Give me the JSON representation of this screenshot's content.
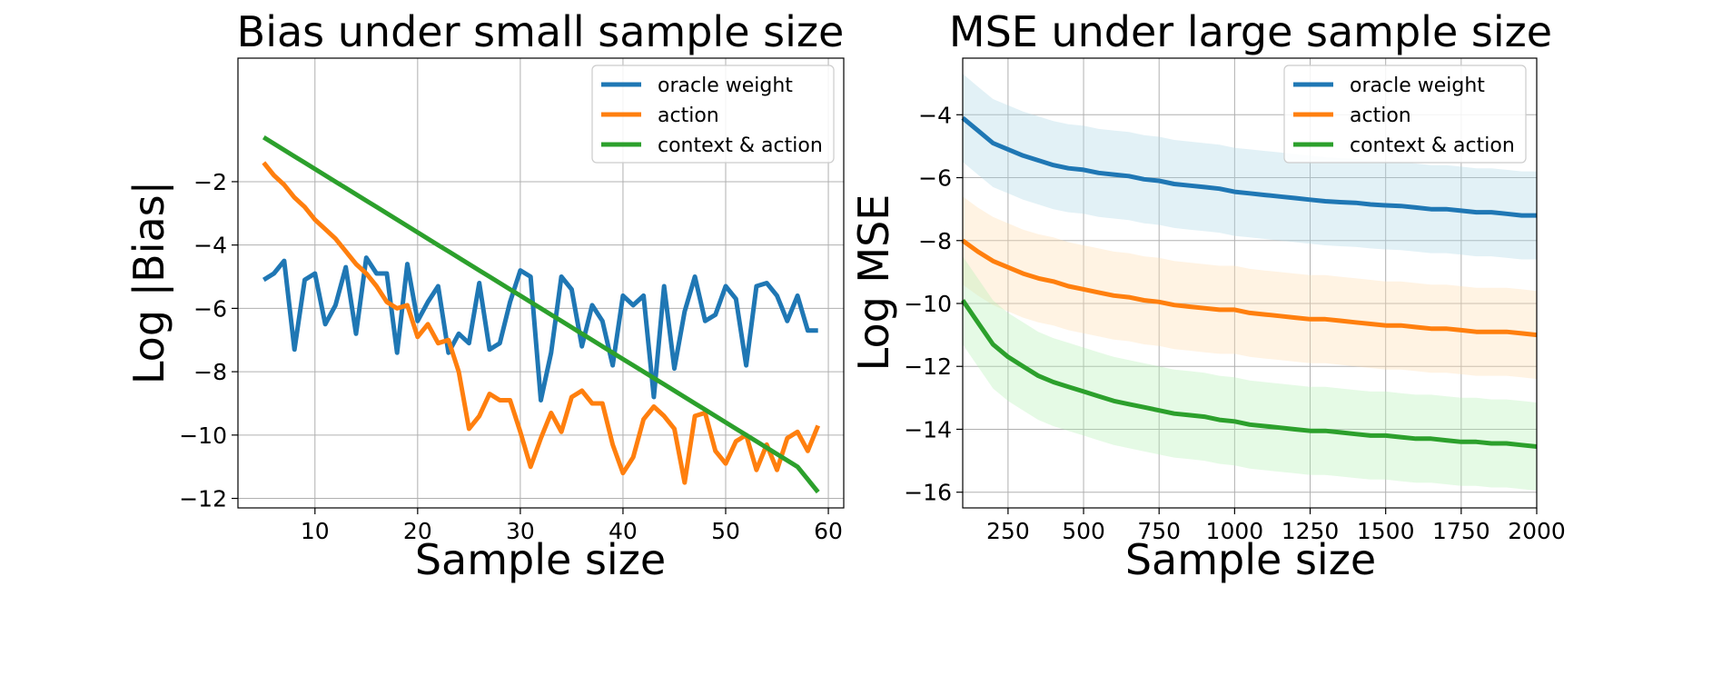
{
  "chart_data": [
    {
      "type": "line",
      "title": "Bias under small sample size",
      "xlabel": "Sample size",
      "ylabel": "Log |Bias|",
      "xlim": [
        2.5,
        61.5
      ],
      "ylim": [
        -12.3,
        1.9
      ],
      "xticks": [
        10,
        20,
        30,
        40,
        50,
        60
      ],
      "yticks": [
        -12,
        -10,
        -8,
        -6,
        -4,
        -2
      ],
      "ytick_labels": [
        "−12",
        "−10",
        "−8",
        "−6",
        "−4",
        "−2"
      ],
      "grid": true,
      "legend_position": "top-right",
      "x": [
        5,
        6,
        7,
        8,
        9,
        10,
        11,
        12,
        13,
        14,
        15,
        16,
        17,
        18,
        19,
        20,
        21,
        22,
        23,
        24,
        25,
        26,
        27,
        28,
        29,
        30,
        31,
        32,
        33,
        34,
        35,
        36,
        37,
        38,
        39,
        40,
        41,
        42,
        43,
        44,
        45,
        46,
        47,
        48,
        49,
        50,
        51,
        52,
        53,
        54,
        55,
        56,
        57,
        58,
        59
      ],
      "series": [
        {
          "name": "oracle weight",
          "color": "#1f77b4",
          "values": [
            -5.1,
            -4.9,
            -4.5,
            -7.3,
            -5.1,
            -4.9,
            -6.5,
            -5.9,
            -4.7,
            -6.8,
            -4.4,
            -4.9,
            -4.9,
            -7.4,
            -4.6,
            -6.4,
            -5.8,
            -5.3,
            -7.4,
            -6.8,
            -7.1,
            -5.2,
            -7.3,
            -7.1,
            -5.8,
            -4.8,
            -5.0,
            -8.9,
            -7.4,
            -5.0,
            -5.4,
            -7.2,
            -5.9,
            -6.4,
            -7.8,
            -5.6,
            -5.9,
            -5.6,
            -8.8,
            -5.3,
            -7.9,
            -6.1,
            -5.0,
            -6.4,
            -6.2,
            -5.3,
            -5.7,
            -7.8,
            -5.3,
            -5.2,
            -5.6,
            -6.4,
            -5.6,
            -6.7,
            -6.7
          ]
        },
        {
          "name": "action",
          "color": "#ff7f0e",
          "values": [
            -1.4,
            -1.8,
            -2.1,
            -2.5,
            -2.8,
            -3.2,
            -3.5,
            -3.8,
            -4.2,
            -4.6,
            -4.9,
            -5.3,
            -5.8,
            -6.0,
            -5.9,
            -6.9,
            -6.5,
            -7.1,
            -7.0,
            -8.0,
            -9.8,
            -9.4,
            -8.7,
            -8.9,
            -8.9,
            -9.9,
            -11.0,
            -10.1,
            -9.3,
            -9.9,
            -8.8,
            -8.6,
            -9.0,
            -9.0,
            -10.3,
            -11.2,
            -10.7,
            -9.5,
            -9.1,
            -9.4,
            -9.8,
            -11.5,
            -9.4,
            -9.3,
            -10.5,
            -10.9,
            -10.2,
            -10.0,
            -11.1,
            -10.3,
            -11.1,
            -10.1,
            -9.9,
            -10.5,
            -9.7
          ]
        },
        {
          "name": "context & action",
          "color": "#2ca02c",
          "values": [
            -0.6,
            -0.8,
            -1.0,
            -1.2,
            -1.4,
            -1.6,
            -1.8,
            -2.0,
            -2.2,
            -2.4,
            -2.6,
            -2.8,
            -3.0,
            -3.2,
            -3.4,
            -3.6,
            -3.8,
            -4.0,
            -4.2,
            -4.4,
            -4.6,
            -4.8,
            -5.0,
            -5.2,
            -5.4,
            -5.6,
            -5.8,
            -6.0,
            -6.2,
            -6.4,
            -6.6,
            -6.8,
            -7.0,
            -7.2,
            -7.4,
            -7.6,
            -7.8,
            -8.0,
            -8.2,
            -8.4,
            -8.6,
            -8.8,
            -9.0,
            -9.2,
            -9.4,
            -9.6,
            -9.8,
            -10.0,
            -10.2,
            -10.4,
            -10.6,
            -10.8,
            -11.0,
            -11.4,
            -11.8
          ]
        }
      ]
    },
    {
      "type": "line",
      "title": "MSE under large sample size",
      "xlabel": "Sample size",
      "ylabel": "Log MSE",
      "xlim": [
        100,
        2000
      ],
      "ylim": [
        -16.5,
        -2.2
      ],
      "xticks": [
        250,
        500,
        750,
        1000,
        1250,
        1500,
        1750,
        2000
      ],
      "yticks": [
        -16,
        -14,
        -12,
        -10,
        -8,
        -6,
        -4
      ],
      "ytick_labels": [
        "−16",
        "−14",
        "−12",
        "−10",
        "−8",
        "−6",
        "−4"
      ],
      "grid": true,
      "legend_position": "top-right",
      "x": [
        100,
        150,
        200,
        250,
        300,
        350,
        400,
        450,
        500,
        550,
        600,
        650,
        700,
        750,
        800,
        850,
        900,
        950,
        1000,
        1050,
        1100,
        1150,
        1200,
        1250,
        1300,
        1350,
        1400,
        1450,
        1500,
        1550,
        1600,
        1650,
        1700,
        1750,
        1800,
        1850,
        1900,
        1950,
        2000
      ],
      "series": [
        {
          "name": "oracle weight",
          "color": "#1f77b4",
          "band_color": "#add8e6",
          "values": [
            -4.1,
            -4.5,
            -4.9,
            -5.1,
            -5.3,
            -5.45,
            -5.6,
            -5.7,
            -5.75,
            -5.85,
            -5.9,
            -5.95,
            -6.05,
            -6.1,
            -6.2,
            -6.25,
            -6.3,
            -6.35,
            -6.45,
            -6.5,
            -6.55,
            -6.6,
            -6.65,
            -6.7,
            -6.75,
            -6.78,
            -6.8,
            -6.85,
            -6.88,
            -6.9,
            -6.95,
            -7.0,
            -7.0,
            -7.05,
            -7.1,
            -7.1,
            -7.15,
            -7.2,
            -7.2
          ],
          "lower": [
            -5.5,
            -5.9,
            -6.3,
            -6.5,
            -6.7,
            -6.85,
            -7.0,
            -7.1,
            -7.15,
            -7.25,
            -7.3,
            -7.35,
            -7.45,
            -7.5,
            -7.6,
            -7.65,
            -7.7,
            -7.75,
            -7.85,
            -7.9,
            -7.95,
            -8.0,
            -8.05,
            -8.1,
            -8.15,
            -8.18,
            -8.2,
            -8.25,
            -8.28,
            -8.3,
            -8.35,
            -8.4,
            -8.4,
            -8.45,
            -8.5,
            -8.5,
            -8.55,
            -8.6,
            -8.6
          ],
          "upper": [
            -2.7,
            -3.1,
            -3.5,
            -3.7,
            -3.9,
            -4.05,
            -4.2,
            -4.3,
            -4.35,
            -4.45,
            -4.5,
            -4.55,
            -4.65,
            -4.7,
            -4.8,
            -4.85,
            -4.9,
            -4.95,
            -5.05,
            -5.1,
            -5.15,
            -5.2,
            -5.25,
            -5.3,
            -5.35,
            -5.38,
            -5.4,
            -5.45,
            -5.48,
            -5.5,
            -5.55,
            -5.6,
            -5.6,
            -5.65,
            -5.7,
            -5.7,
            -5.75,
            -5.8,
            -5.8
          ]
        },
        {
          "name": "action",
          "color": "#ff7f0e",
          "band_color": "#ffdcaf",
          "values": [
            -8.0,
            -8.35,
            -8.65,
            -8.85,
            -9.05,
            -9.2,
            -9.3,
            -9.45,
            -9.55,
            -9.65,
            -9.75,
            -9.8,
            -9.9,
            -9.95,
            -10.05,
            -10.1,
            -10.15,
            -10.2,
            -10.2,
            -10.3,
            -10.35,
            -10.4,
            -10.45,
            -10.5,
            -10.5,
            -10.55,
            -10.6,
            -10.65,
            -10.7,
            -10.7,
            -10.75,
            -10.8,
            -10.8,
            -10.85,
            -10.9,
            -10.9,
            -10.9,
            -10.95,
            -11.0
          ],
          "lower": [
            -9.4,
            -9.75,
            -10.05,
            -10.25,
            -10.45,
            -10.6,
            -10.7,
            -10.85,
            -10.95,
            -11.05,
            -11.15,
            -11.2,
            -11.3,
            -11.35,
            -11.45,
            -11.5,
            -11.55,
            -11.6,
            -11.6,
            -11.7,
            -11.75,
            -11.8,
            -11.85,
            -11.9,
            -11.9,
            -11.95,
            -12.0,
            -12.05,
            -12.1,
            -12.1,
            -12.15,
            -12.2,
            -12.2,
            -12.25,
            -12.3,
            -12.3,
            -12.3,
            -12.35,
            -12.4
          ],
          "upper": [
            -6.6,
            -6.95,
            -7.25,
            -7.45,
            -7.65,
            -7.8,
            -7.9,
            -8.05,
            -8.15,
            -8.25,
            -8.35,
            -8.4,
            -8.5,
            -8.55,
            -8.65,
            -8.7,
            -8.75,
            -8.8,
            -8.8,
            -8.9,
            -8.95,
            -9.0,
            -9.05,
            -9.1,
            -9.1,
            -9.15,
            -9.2,
            -9.25,
            -9.3,
            -9.3,
            -9.35,
            -9.4,
            -9.4,
            -9.45,
            -9.5,
            -9.5,
            -9.5,
            -9.55,
            -9.6
          ]
        },
        {
          "name": "context & action",
          "color": "#2ca02c",
          "band_color": "#b4f0b4",
          "values": [
            -9.9,
            -10.6,
            -11.3,
            -11.7,
            -12.0,
            -12.3,
            -12.5,
            -12.65,
            -12.8,
            -12.95,
            -13.1,
            -13.2,
            -13.3,
            -13.4,
            -13.5,
            -13.55,
            -13.6,
            -13.7,
            -13.75,
            -13.85,
            -13.9,
            -13.95,
            -14.0,
            -14.05,
            -14.05,
            -14.1,
            -14.15,
            -14.2,
            -14.2,
            -14.25,
            -14.3,
            -14.3,
            -14.35,
            -14.4,
            -14.4,
            -14.45,
            -14.45,
            -14.5,
            -14.55
          ],
          "lower": [
            -11.3,
            -12.0,
            -12.7,
            -13.1,
            -13.4,
            -13.7,
            -13.9,
            -14.05,
            -14.2,
            -14.35,
            -14.5,
            -14.6,
            -14.7,
            -14.8,
            -14.9,
            -14.95,
            -15.0,
            -15.1,
            -15.15,
            -15.25,
            -15.3,
            -15.35,
            -15.4,
            -15.45,
            -15.45,
            -15.5,
            -15.55,
            -15.6,
            -15.6,
            -15.65,
            -15.7,
            -15.7,
            -15.75,
            -15.8,
            -15.8,
            -15.85,
            -15.85,
            -15.9,
            -15.95
          ],
          "upper": [
            -8.5,
            -9.2,
            -9.9,
            -10.3,
            -10.6,
            -10.9,
            -11.1,
            -11.25,
            -11.4,
            -11.55,
            -11.7,
            -11.8,
            -11.9,
            -12.0,
            -12.1,
            -12.15,
            -12.2,
            -12.3,
            -12.35,
            -12.45,
            -12.5,
            -12.55,
            -12.6,
            -12.65,
            -12.65,
            -12.7,
            -12.75,
            -12.8,
            -12.8,
            -12.85,
            -12.9,
            -12.9,
            -12.95,
            -13.0,
            -13.0,
            -13.05,
            -13.05,
            -13.1,
            -13.15
          ]
        }
      ]
    }
  ]
}
